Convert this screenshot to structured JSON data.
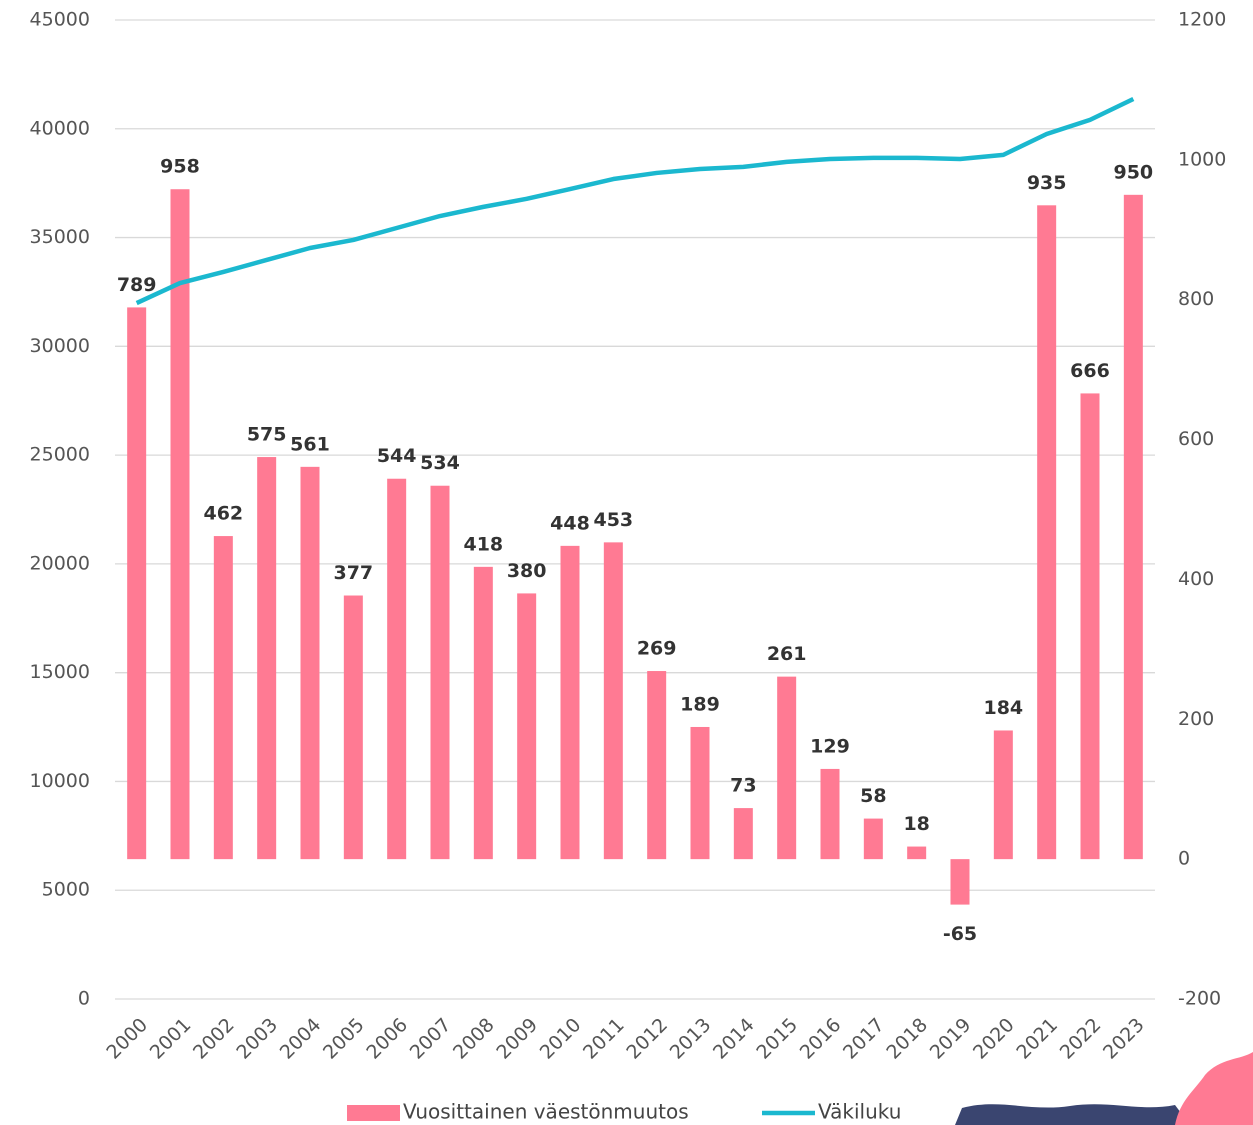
{
  "chart_data": {
    "type": "combo",
    "categories": [
      "2000",
      "2001",
      "2002",
      "2003",
      "2004",
      "2005",
      "2006",
      "2007",
      "2008",
      "2009",
      "2010",
      "2011",
      "2012",
      "2013",
      "2014",
      "2015",
      "2016",
      "2017",
      "2018",
      "2019",
      "2020",
      "2021",
      "2022",
      "2023"
    ],
    "series": [
      {
        "name": "Vuosittainen väestönmuutos",
        "type": "bar",
        "axis": "y2",
        "color": "#ff7a93",
        "values": [
          789,
          958,
          462,
          575,
          561,
          377,
          544,
          534,
          418,
          380,
          448,
          453,
          269,
          189,
          73,
          261,
          129,
          58,
          18,
          -65,
          184,
          935,
          666,
          950
        ]
      },
      {
        "name": "Väkiluku",
        "type": "line",
        "color": "#1bb8cf",
        "values": [
          31990,
          32910,
          33420,
          33970,
          34520,
          34890,
          35440,
          35990,
          36410,
          36780,
          37230,
          37690,
          37970,
          38150,
          38250,
          38480,
          38610,
          38660,
          38660,
          38610,
          38800,
          39760,
          40410,
          41370
        ]
      }
    ],
    "ylim": [
      0,
      45000
    ],
    "yticks": [
      0,
      5000,
      10000,
      15000,
      20000,
      25000,
      30000,
      35000,
      40000,
      45000
    ],
    "y2lim": [
      -200,
      1200
    ],
    "y2ticks": [
      -200,
      0,
      200,
      400,
      600,
      800,
      1000,
      1200
    ],
    "grid": true,
    "legend": "bottom"
  }
}
